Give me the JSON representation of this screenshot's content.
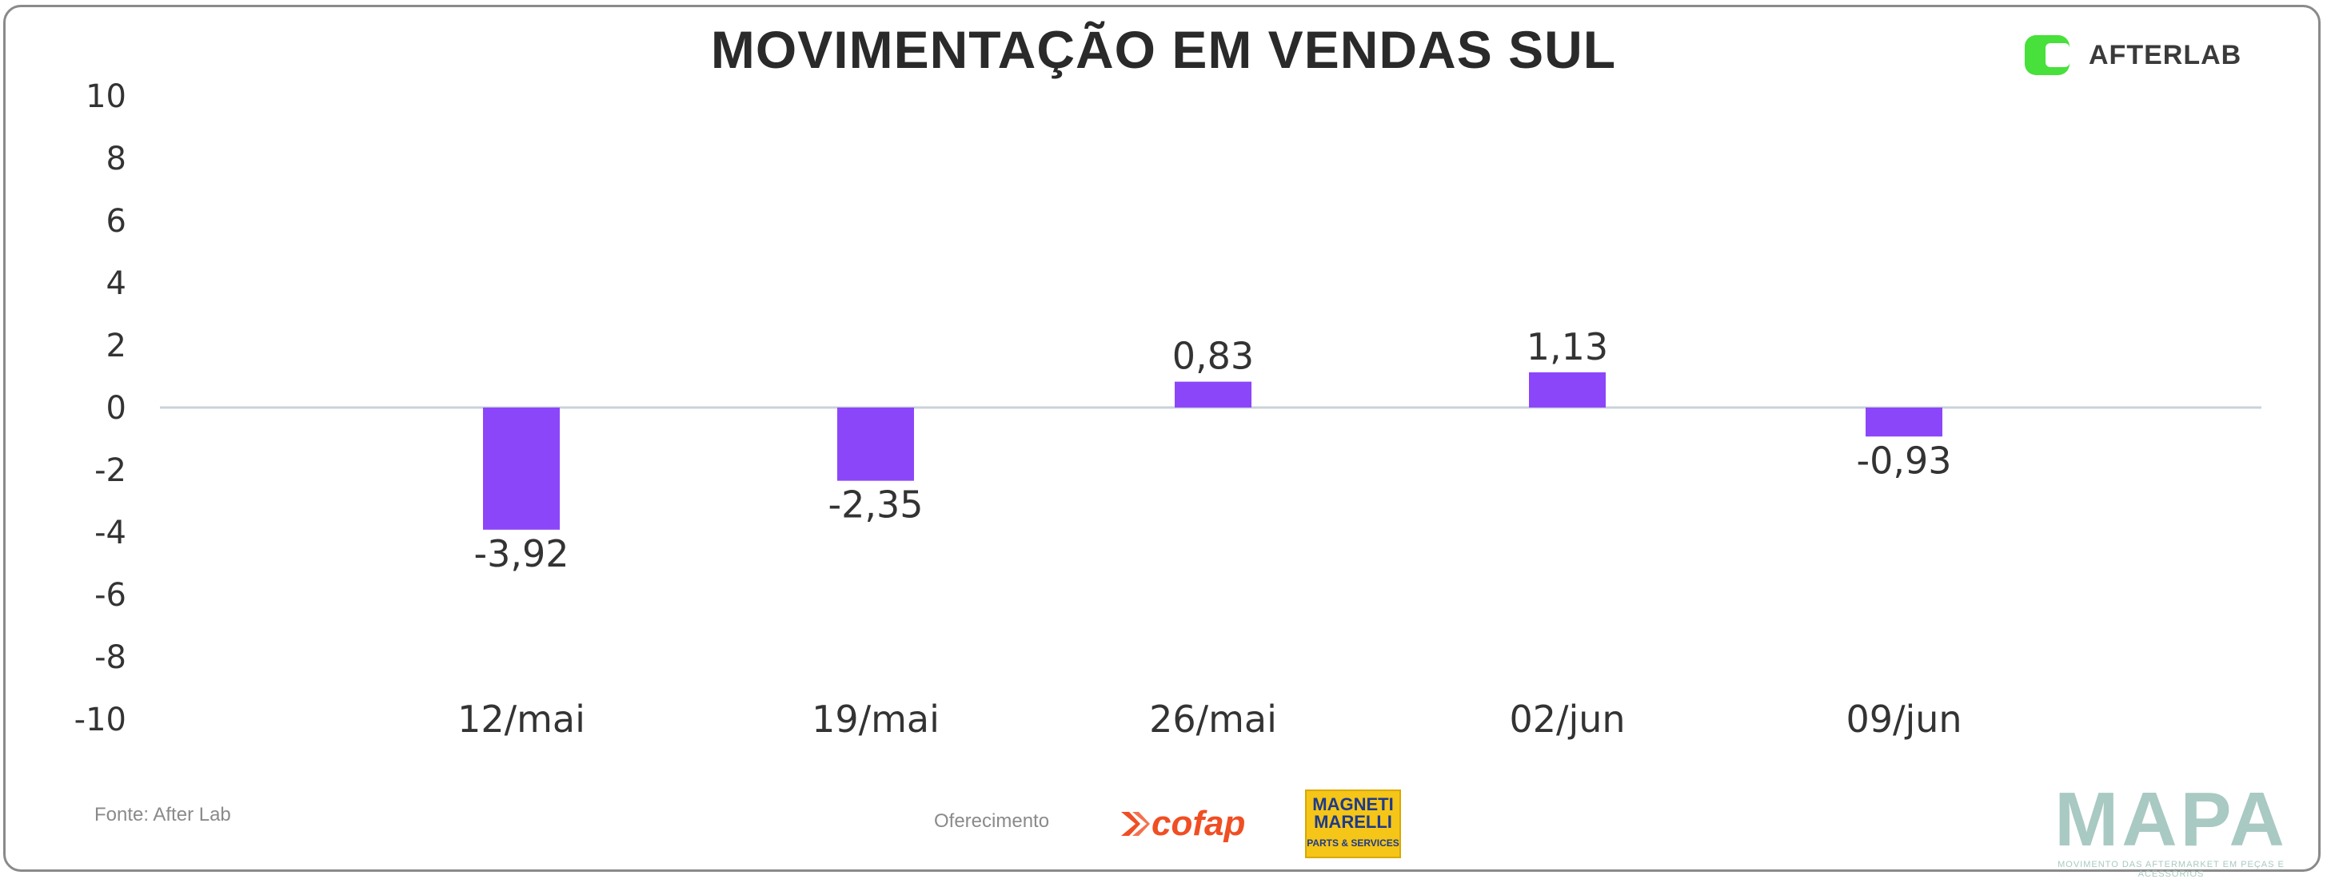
{
  "chart_data": {
    "type": "bar",
    "title": "MOVIMENTAÇÃO EM VENDAS SUL",
    "categories": [
      "12/mai",
      "19/mai",
      "26/mai",
      "02/jun",
      "09/jun"
    ],
    "values": [
      -3.92,
      -2.35,
      0.83,
      1.13,
      -0.93
    ],
    "data_labels": [
      "-3,92",
      "-2,35",
      "0,83",
      "1,13",
      "-0,93"
    ],
    "ylim": [
      -10,
      10
    ],
    "yticks": [
      -10,
      -8,
      -6,
      -4,
      -2,
      0,
      2,
      4,
      6,
      8,
      10
    ],
    "xlabel": "",
    "ylabel": "",
    "bar_color": "#8c46fa",
    "zero_line_color": "#c9d3d9",
    "grid": false,
    "legend": "none"
  },
  "brand": {
    "name": "AFTERLAB",
    "accent_color": "#48e03a"
  },
  "footer": {
    "source": "Fonte: After Lab",
    "sponsor_label": "Oferecimento",
    "sponsors": [
      "cofap",
      "MAGNETI MARELLI",
      "PARTS & SERVICES"
    ],
    "mapa_name": "MAPA",
    "mapa_tagline": "MOVIMENTO DAS AFTERMARKET EM PEÇAS E ACESSÓRIOS"
  }
}
